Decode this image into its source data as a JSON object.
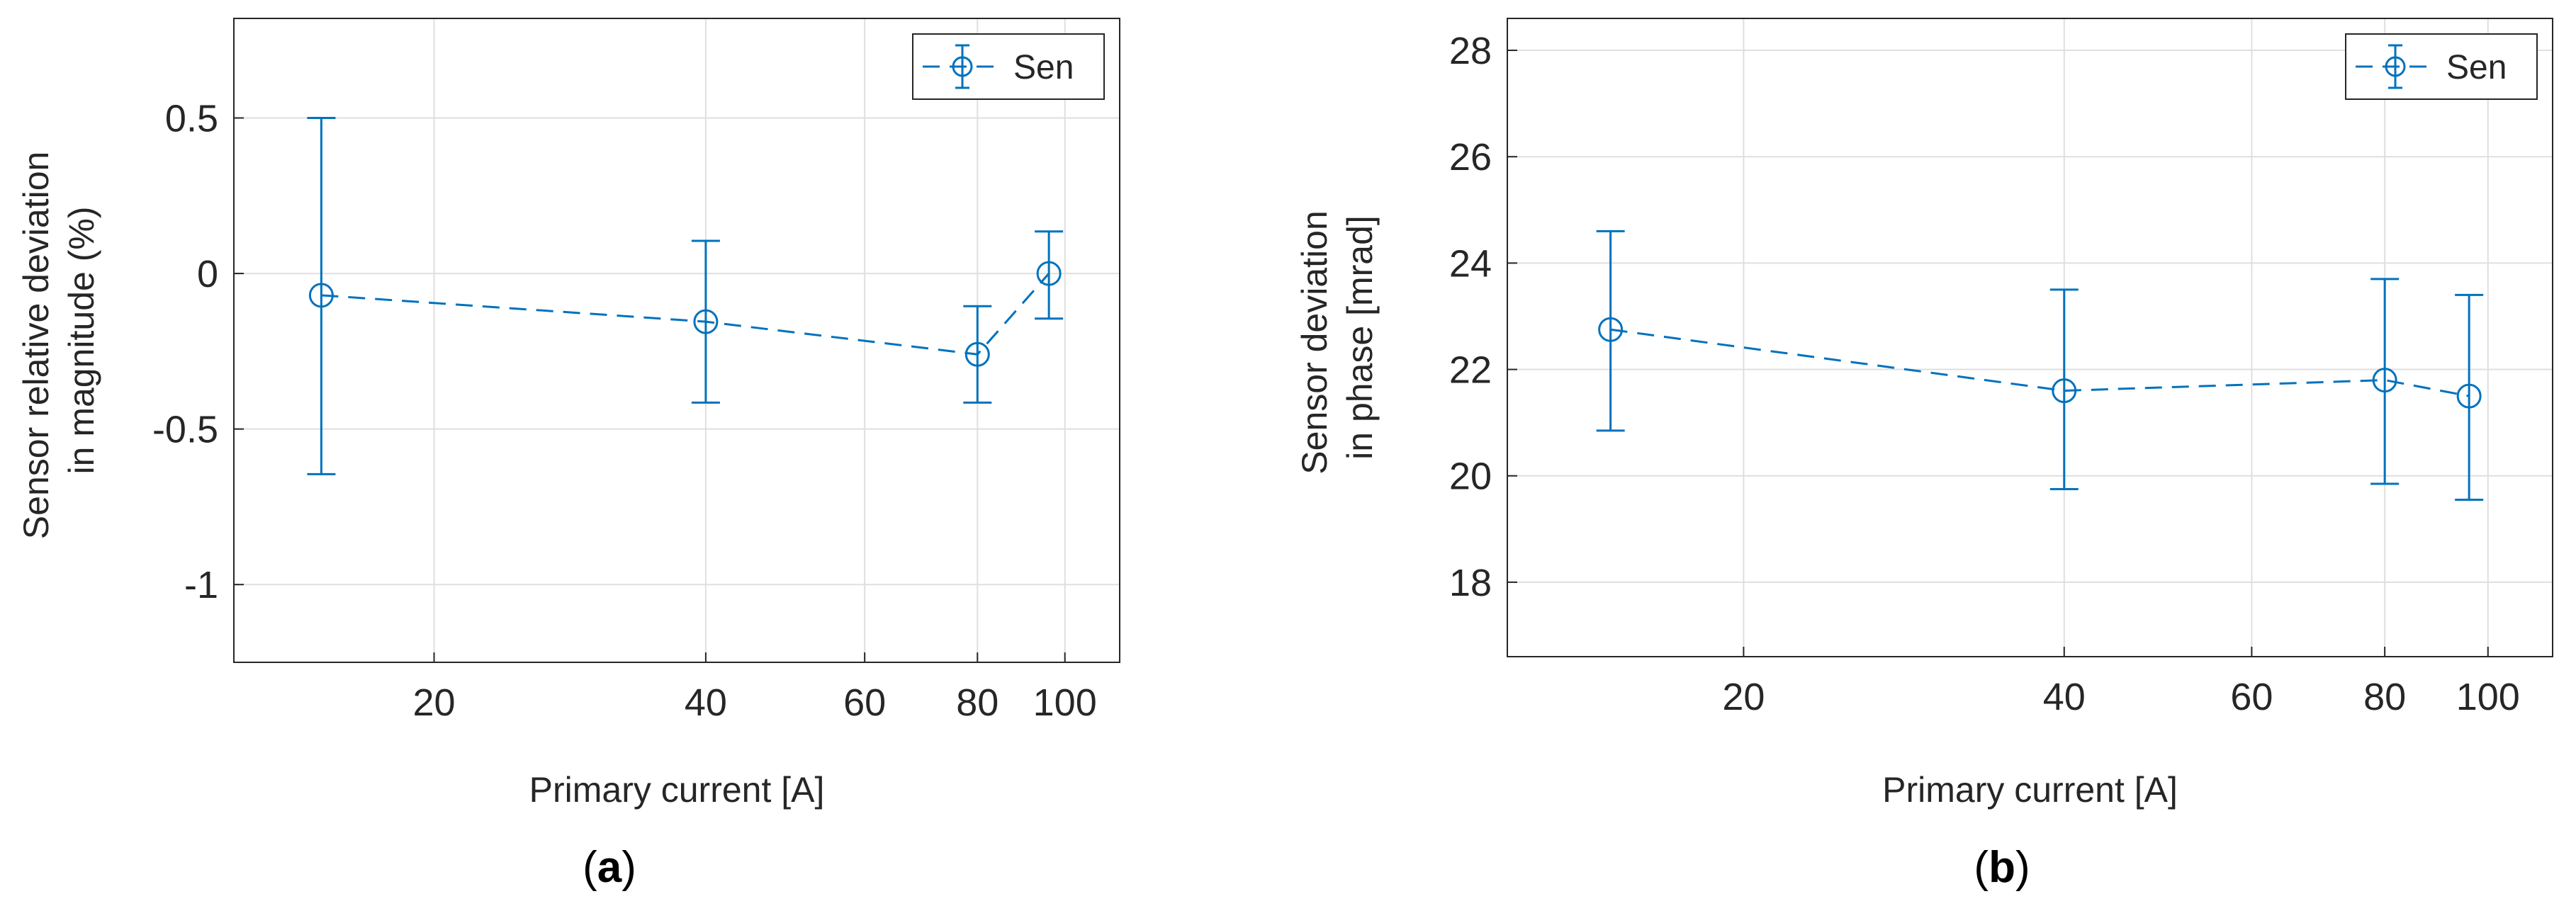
{
  "chart_data": [
    {
      "id": "a",
      "type": "line",
      "panel_label": "a",
      "xlabel": "Primary current [A]",
      "ylabel_lines": [
        "Sensor relative deviation",
        "in magnitude (%)"
      ],
      "xscale": "log",
      "xlim": [
        12,
        115
      ],
      "ylim": [
        -1.25,
        0.82
      ],
      "xticks": [
        20,
        40,
        60,
        80,
        100
      ],
      "xtick_labels": [
        "20",
        "40",
        "60",
        "80",
        "100"
      ],
      "yticks": [
        -1,
        -0.5,
        0,
        0.5
      ],
      "ytick_labels": [
        "-1",
        "-0.5",
        "0",
        "0.5"
      ],
      "grid": true,
      "legend": {
        "position": "top-right",
        "entries": [
          "Sen"
        ]
      },
      "series": [
        {
          "name": "Sen",
          "color": "#0072BD",
          "line_style": "dashed",
          "marker": "circle",
          "x": [
            15,
            40,
            80,
            96
          ],
          "y": [
            -0.07,
            -0.155,
            -0.26,
            0.0
          ],
          "err_low": [
            -0.645,
            -0.415,
            -0.415,
            -0.145
          ],
          "err_high": [
            0.5,
            0.105,
            -0.105,
            0.135
          ]
        }
      ]
    },
    {
      "id": "b",
      "type": "line",
      "panel_label": "b",
      "xlabel": "Primary current [A]",
      "ylabel_lines": [
        "Sensor deviation",
        "in phase [mrad]"
      ],
      "xscale": "log",
      "xlim": [
        12,
        115
      ],
      "ylim": [
        16.6,
        28.6
      ],
      "xticks": [
        20,
        40,
        60,
        80,
        100
      ],
      "xtick_labels": [
        "20",
        "40",
        "60",
        "80",
        "100"
      ],
      "yticks": [
        18,
        20,
        22,
        24,
        26,
        28
      ],
      "ytick_labels": [
        "18",
        "20",
        "22",
        "24",
        "26",
        "28"
      ],
      "grid": true,
      "legend": {
        "position": "top-right",
        "entries": [
          "Sen"
        ]
      },
      "series": [
        {
          "name": "Sen",
          "color": "#0072BD",
          "line_style": "dashed",
          "marker": "circle",
          "x": [
            15,
            40,
            80,
            96
          ],
          "y": [
            22.75,
            21.6,
            21.8,
            21.5
          ],
          "err_low": [
            20.85,
            19.75,
            19.85,
            19.55
          ],
          "err_high": [
            24.6,
            23.5,
            23.7,
            23.4
          ]
        }
      ]
    }
  ]
}
